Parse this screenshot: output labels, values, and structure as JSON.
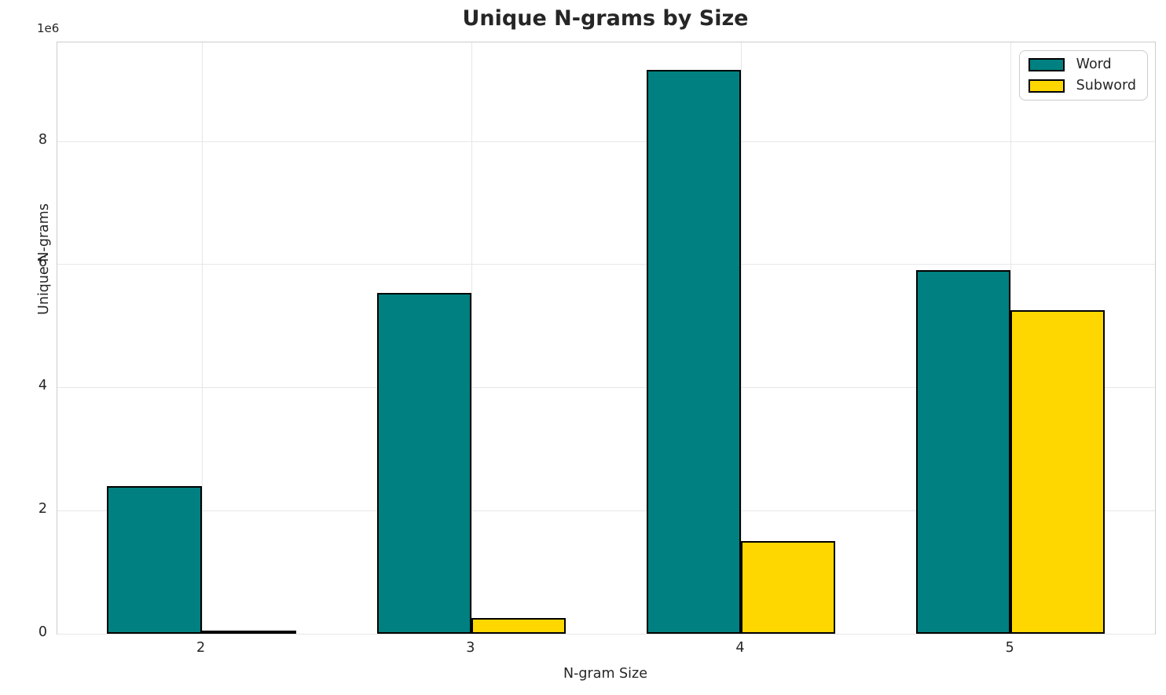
{
  "chart_data": {
    "type": "bar",
    "title": "Unique N-grams by Size",
    "xlabel": "N-gram Size",
    "ylabel": "Unique N-grams",
    "offset_text": "1e6",
    "categories": [
      "2",
      "3",
      "4",
      "5"
    ],
    "series": [
      {
        "name": "Word",
        "color": "#008080",
        "values": [
          2400000,
          5530000,
          9150000,
          5900000
        ]
      },
      {
        "name": "Subword",
        "color": "#ffd700",
        "values": [
          30000,
          250000,
          1500000,
          5250000
        ]
      }
    ],
    "ylim": [
      0,
      9600000
    ],
    "yticks": [
      0,
      2000000,
      4000000,
      6000000,
      8000000
    ],
    "ytick_labels": [
      "0",
      "2",
      "4",
      "6",
      "8"
    ],
    "bar_width_data_units": 0.35,
    "bar_edge_color": "#000000",
    "grid": true,
    "legend_position": "upper right",
    "accent_colors": {
      "word": "#008080",
      "subword": "#ffd700",
      "text": "#262626",
      "grid": "#e7e7e7",
      "spine": "#cdcdcd"
    }
  }
}
